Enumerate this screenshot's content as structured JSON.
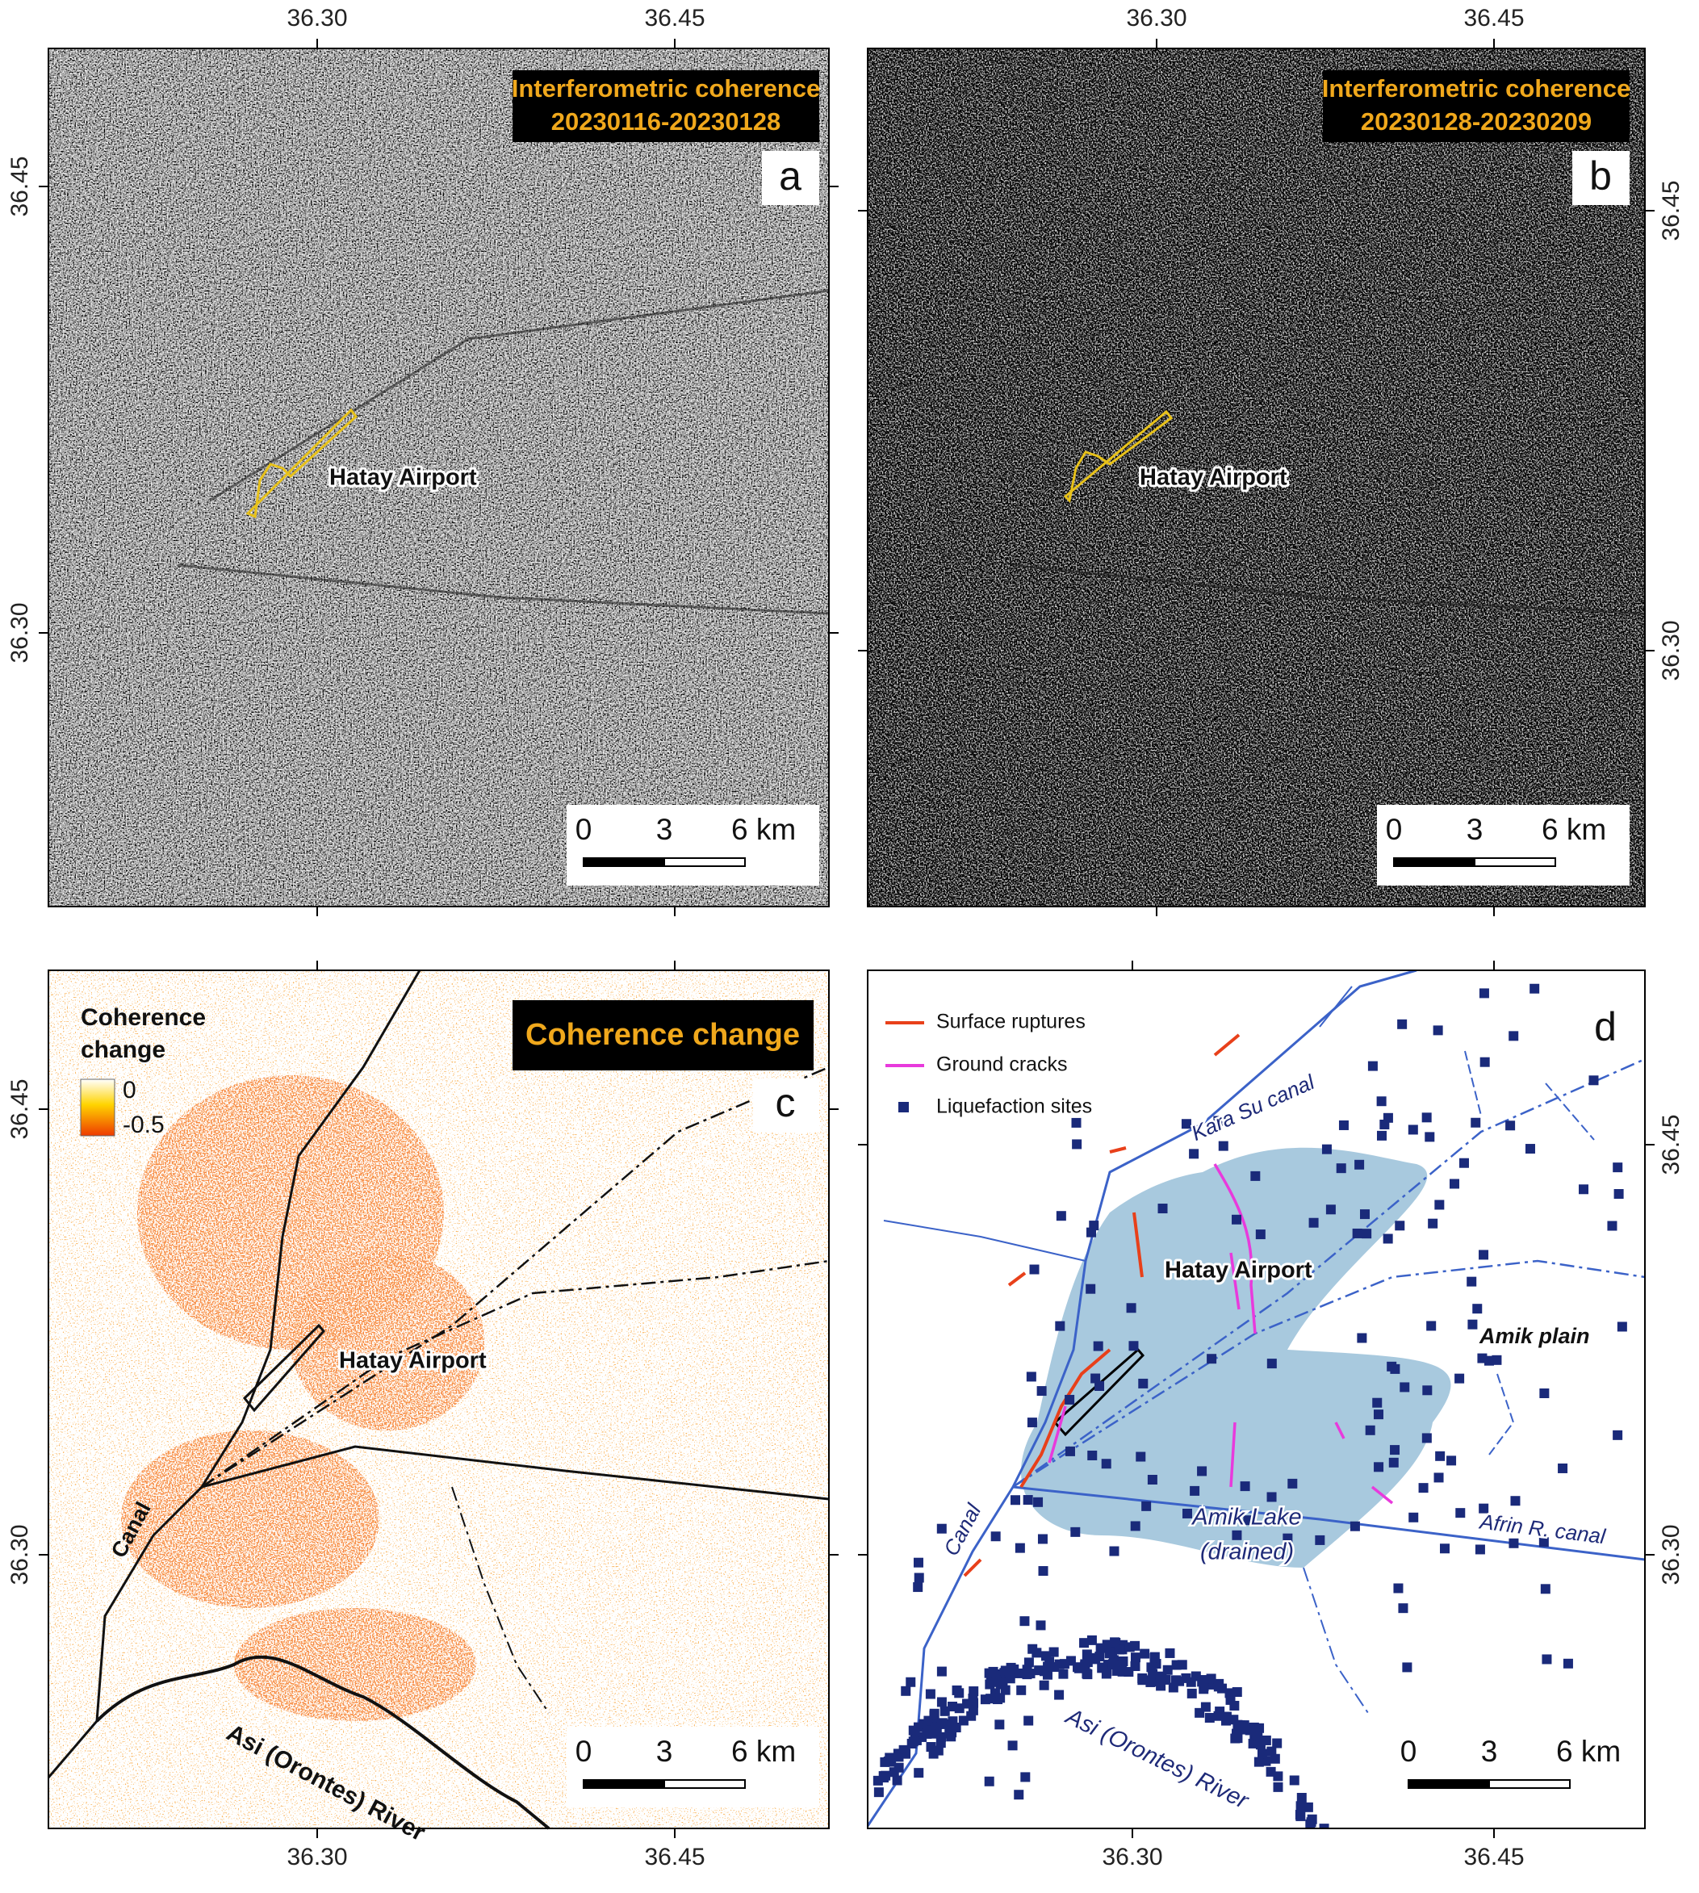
{
  "panels": [
    {
      "letter": "a",
      "title": [
        "Interferometric coherence",
        "20230116-20230128"
      ],
      "x_ticks": [
        "36.30",
        "36.45"
      ],
      "y_ticks": [
        "36.45",
        "36.30"
      ],
      "label": "Hatay Airport",
      "scale": [
        "0",
        "3",
        "6 km"
      ]
    },
    {
      "letter": "b",
      "title": [
        "Interferometric coherence",
        "20230128-20230209"
      ],
      "x_ticks": [
        "36.30",
        "36.45"
      ],
      "y_ticks": [
        "36.45",
        "36.30"
      ],
      "label": "Hatay Airport",
      "scale": [
        "0",
        "3",
        "6 km"
      ]
    },
    {
      "letter": "c",
      "title": [
        "Coherence change"
      ],
      "legend": {
        "title": [
          "Coherence",
          "change"
        ],
        "items": [
          "0",
          "-0.5"
        ]
      },
      "x_ticks": [
        "36.30",
        "36.45"
      ],
      "y_ticks": [
        "36.45",
        "36.30"
      ],
      "labels": [
        "Hatay Airport",
        "Canal",
        "Asi (Orontes) River"
      ],
      "scale": [
        "0",
        "3",
        "6 km"
      ]
    },
    {
      "letter": "d",
      "legend": {
        "items": [
          "Surface ruptures",
          "Ground cracks",
          "Liquefaction sites"
        ]
      },
      "x_ticks": [
        "36.30",
        "36.45"
      ],
      "y_ticks": [
        "36.45",
        "36.30"
      ],
      "labels": [
        "Kara Su canal",
        "Hatay Airport",
        "Amik plain",
        "Canal",
        "Amik Lake",
        "(drained)",
        "Afrin R. canal",
        "Asi (Orontes) River"
      ],
      "scale": [
        "0",
        "3",
        "6 km"
      ]
    }
  ]
}
